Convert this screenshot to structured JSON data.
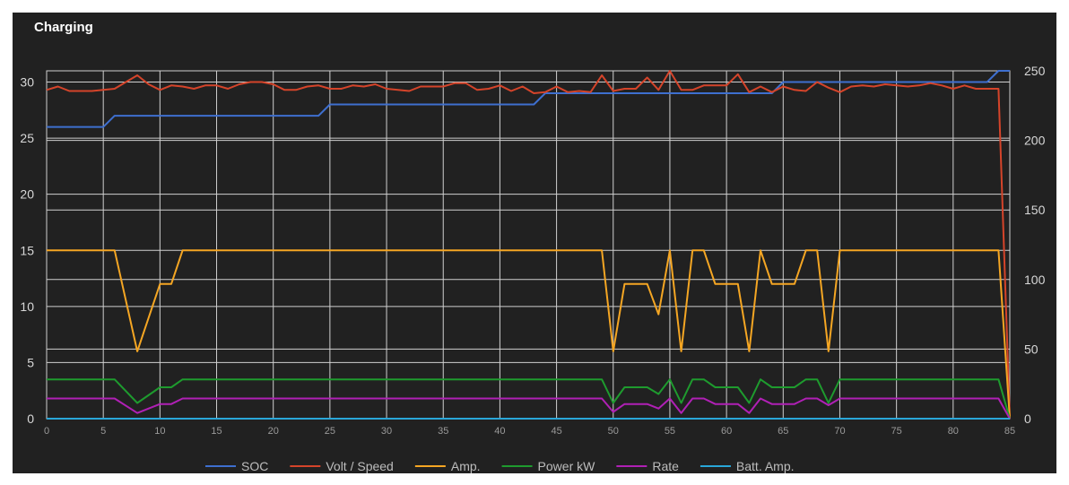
{
  "title": "Charging",
  "chart_data": {
    "type": "line",
    "title": "Charging",
    "xlabel": "",
    "ylabel": "",
    "xlim": [
      0,
      85
    ],
    "ylim": [
      0,
      31
    ],
    "y2lim": [
      0,
      250
    ],
    "x_ticks": [
      0,
      5,
      10,
      15,
      20,
      25,
      30,
      35,
      40,
      45,
      50,
      55,
      60,
      65,
      70,
      75,
      80,
      85
    ],
    "y_ticks": [
      0,
      5,
      10,
      15,
      20,
      25,
      30
    ],
    "y2_ticks": [
      0,
      50,
      100,
      150,
      200,
      250
    ],
    "grid": true,
    "legend_position": "bottom",
    "series": [
      {
        "name": "SOC",
        "axis": "left",
        "color": "#3e6fcf",
        "points": [
          [
            0,
            26
          ],
          [
            5,
            26
          ],
          [
            6,
            27
          ],
          [
            24,
            27
          ],
          [
            25,
            28
          ],
          [
            43,
            28
          ],
          [
            44,
            29
          ],
          [
            64,
            29
          ],
          [
            65,
            30
          ],
          [
            83,
            30
          ],
          [
            84,
            31
          ],
          [
            85,
            31
          ]
        ]
      },
      {
        "name": "Volt / Speed",
        "axis": "left",
        "color": "#d5442a",
        "points": [
          [
            0,
            29.3
          ],
          [
            1,
            29.6
          ],
          [
            2,
            29.2
          ],
          [
            3,
            29.2
          ],
          [
            4,
            29.2
          ],
          [
            5,
            29.3
          ],
          [
            6,
            29.4
          ],
          [
            7,
            30
          ],
          [
            8,
            30.6
          ],
          [
            9,
            29.8
          ],
          [
            10,
            29.3
          ],
          [
            11,
            29.7
          ],
          [
            12,
            29.6
          ],
          [
            13,
            29.4
          ],
          [
            14,
            29.7
          ],
          [
            15,
            29.7
          ],
          [
            16,
            29.4
          ],
          [
            17,
            29.8
          ],
          [
            18,
            30
          ],
          [
            19,
            30
          ],
          [
            20,
            29.8
          ],
          [
            21,
            29.3
          ],
          [
            22,
            29.3
          ],
          [
            23,
            29.6
          ],
          [
            24,
            29.7
          ],
          [
            25,
            29.4
          ],
          [
            26,
            29.4
          ],
          [
            27,
            29.7
          ],
          [
            28,
            29.6
          ],
          [
            29,
            29.8
          ],
          [
            30,
            29.4
          ],
          [
            31,
            29.3
          ],
          [
            32,
            29.2
          ],
          [
            33,
            29.6
          ],
          [
            34,
            29.6
          ],
          [
            35,
            29.6
          ],
          [
            36,
            29.9
          ],
          [
            37,
            29.9
          ],
          [
            38,
            29.3
          ],
          [
            39,
            29.4
          ],
          [
            40,
            29.7
          ],
          [
            41,
            29.2
          ],
          [
            42,
            29.6
          ],
          [
            43,
            29
          ],
          [
            44,
            29.1
          ],
          [
            45,
            29.6
          ],
          [
            46,
            29.1
          ],
          [
            47,
            29.2
          ],
          [
            48,
            29.1
          ],
          [
            49,
            30.6
          ],
          [
            50,
            29.2
          ],
          [
            51,
            29.4
          ],
          [
            52,
            29.4
          ],
          [
            53,
            30.4
          ],
          [
            54,
            29.3
          ],
          [
            55,
            31
          ],
          [
            56,
            29.3
          ],
          [
            57,
            29.3
          ],
          [
            58,
            29.7
          ],
          [
            59,
            29.7
          ],
          [
            60,
            29.7
          ],
          [
            61,
            30.7
          ],
          [
            62,
            29.1
          ],
          [
            63,
            29.6
          ],
          [
            64,
            29.1
          ],
          [
            65,
            29.6
          ],
          [
            66,
            29.3
          ],
          [
            67,
            29.2
          ],
          [
            68,
            30
          ],
          [
            69,
            29.5
          ],
          [
            70,
            29.1
          ],
          [
            71,
            29.6
          ],
          [
            72,
            29.7
          ],
          [
            73,
            29.6
          ],
          [
            74,
            29.8
          ],
          [
            75,
            29.7
          ],
          [
            76,
            29.6
          ],
          [
            77,
            29.7
          ],
          [
            78,
            29.9
          ],
          [
            79,
            29.7
          ],
          [
            80,
            29.4
          ],
          [
            81,
            29.7
          ],
          [
            82,
            29.4
          ],
          [
            83,
            29.4
          ],
          [
            84,
            29.4
          ],
          [
            85,
            0
          ]
        ]
      },
      {
        "name": "Amp.",
        "axis": "left",
        "color": "#f5a623",
        "points": [
          [
            0,
            15
          ],
          [
            6,
            15
          ],
          [
            8,
            6
          ],
          [
            10,
            12
          ],
          [
            11,
            12
          ],
          [
            12,
            15
          ],
          [
            49,
            15
          ],
          [
            50,
            6
          ],
          [
            51,
            12
          ],
          [
            53,
            12
          ],
          [
            54,
            9.3
          ],
          [
            55,
            15
          ],
          [
            56,
            6
          ],
          [
            57,
            15
          ],
          [
            58,
            15
          ],
          [
            59,
            12
          ],
          [
            61,
            12
          ],
          [
            62,
            6
          ],
          [
            63,
            15
          ],
          [
            64,
            12
          ],
          [
            66,
            12
          ],
          [
            67,
            15
          ],
          [
            68,
            15
          ],
          [
            69,
            6
          ],
          [
            70,
            15
          ],
          [
            84,
            15
          ],
          [
            85,
            0
          ]
        ]
      },
      {
        "name": "Power kW",
        "axis": "left",
        "color": "#1e9b2e",
        "points": [
          [
            0,
            3.5
          ],
          [
            6,
            3.5
          ],
          [
            8,
            1.4
          ],
          [
            10,
            2.8
          ],
          [
            11,
            2.8
          ],
          [
            12,
            3.5
          ],
          [
            49,
            3.5
          ],
          [
            50,
            1.4
          ],
          [
            51,
            2.8
          ],
          [
            53,
            2.8
          ],
          [
            54,
            2.2
          ],
          [
            55,
            3.5
          ],
          [
            56,
            1.4
          ],
          [
            57,
            3.5
          ],
          [
            58,
            3.5
          ],
          [
            59,
            2.8
          ],
          [
            61,
            2.8
          ],
          [
            62,
            1.4
          ],
          [
            63,
            3.5
          ],
          [
            64,
            2.8
          ],
          [
            66,
            2.8
          ],
          [
            67,
            3.5
          ],
          [
            68,
            3.5
          ],
          [
            69,
            1.4
          ],
          [
            70,
            3.5
          ],
          [
            84,
            3.5
          ],
          [
            85,
            0
          ]
        ]
      },
      {
        "name": "Rate",
        "axis": "left",
        "color": "#b020b5",
        "points": [
          [
            0,
            1.8
          ],
          [
            6,
            1.8
          ],
          [
            8,
            0.5
          ],
          [
            10,
            1.3
          ],
          [
            11,
            1.3
          ],
          [
            12,
            1.8
          ],
          [
            49,
            1.8
          ],
          [
            50,
            0.6
          ],
          [
            51,
            1.3
          ],
          [
            53,
            1.3
          ],
          [
            54,
            0.9
          ],
          [
            55,
            1.8
          ],
          [
            56,
            0.5
          ],
          [
            57,
            1.8
          ],
          [
            58,
            1.8
          ],
          [
            59,
            1.3
          ],
          [
            61,
            1.3
          ],
          [
            62,
            0.5
          ],
          [
            63,
            1.8
          ],
          [
            64,
            1.3
          ],
          [
            66,
            1.3
          ],
          [
            67,
            1.8
          ],
          [
            68,
            1.8
          ],
          [
            69,
            1.2
          ],
          [
            70,
            1.8
          ],
          [
            84,
            1.8
          ],
          [
            85,
            0
          ]
        ]
      },
      {
        "name": "Batt. Amp.",
        "axis": "left",
        "color": "#29a7d9",
        "points": [
          [
            0,
            0
          ],
          [
            85,
            0
          ]
        ]
      }
    ]
  }
}
